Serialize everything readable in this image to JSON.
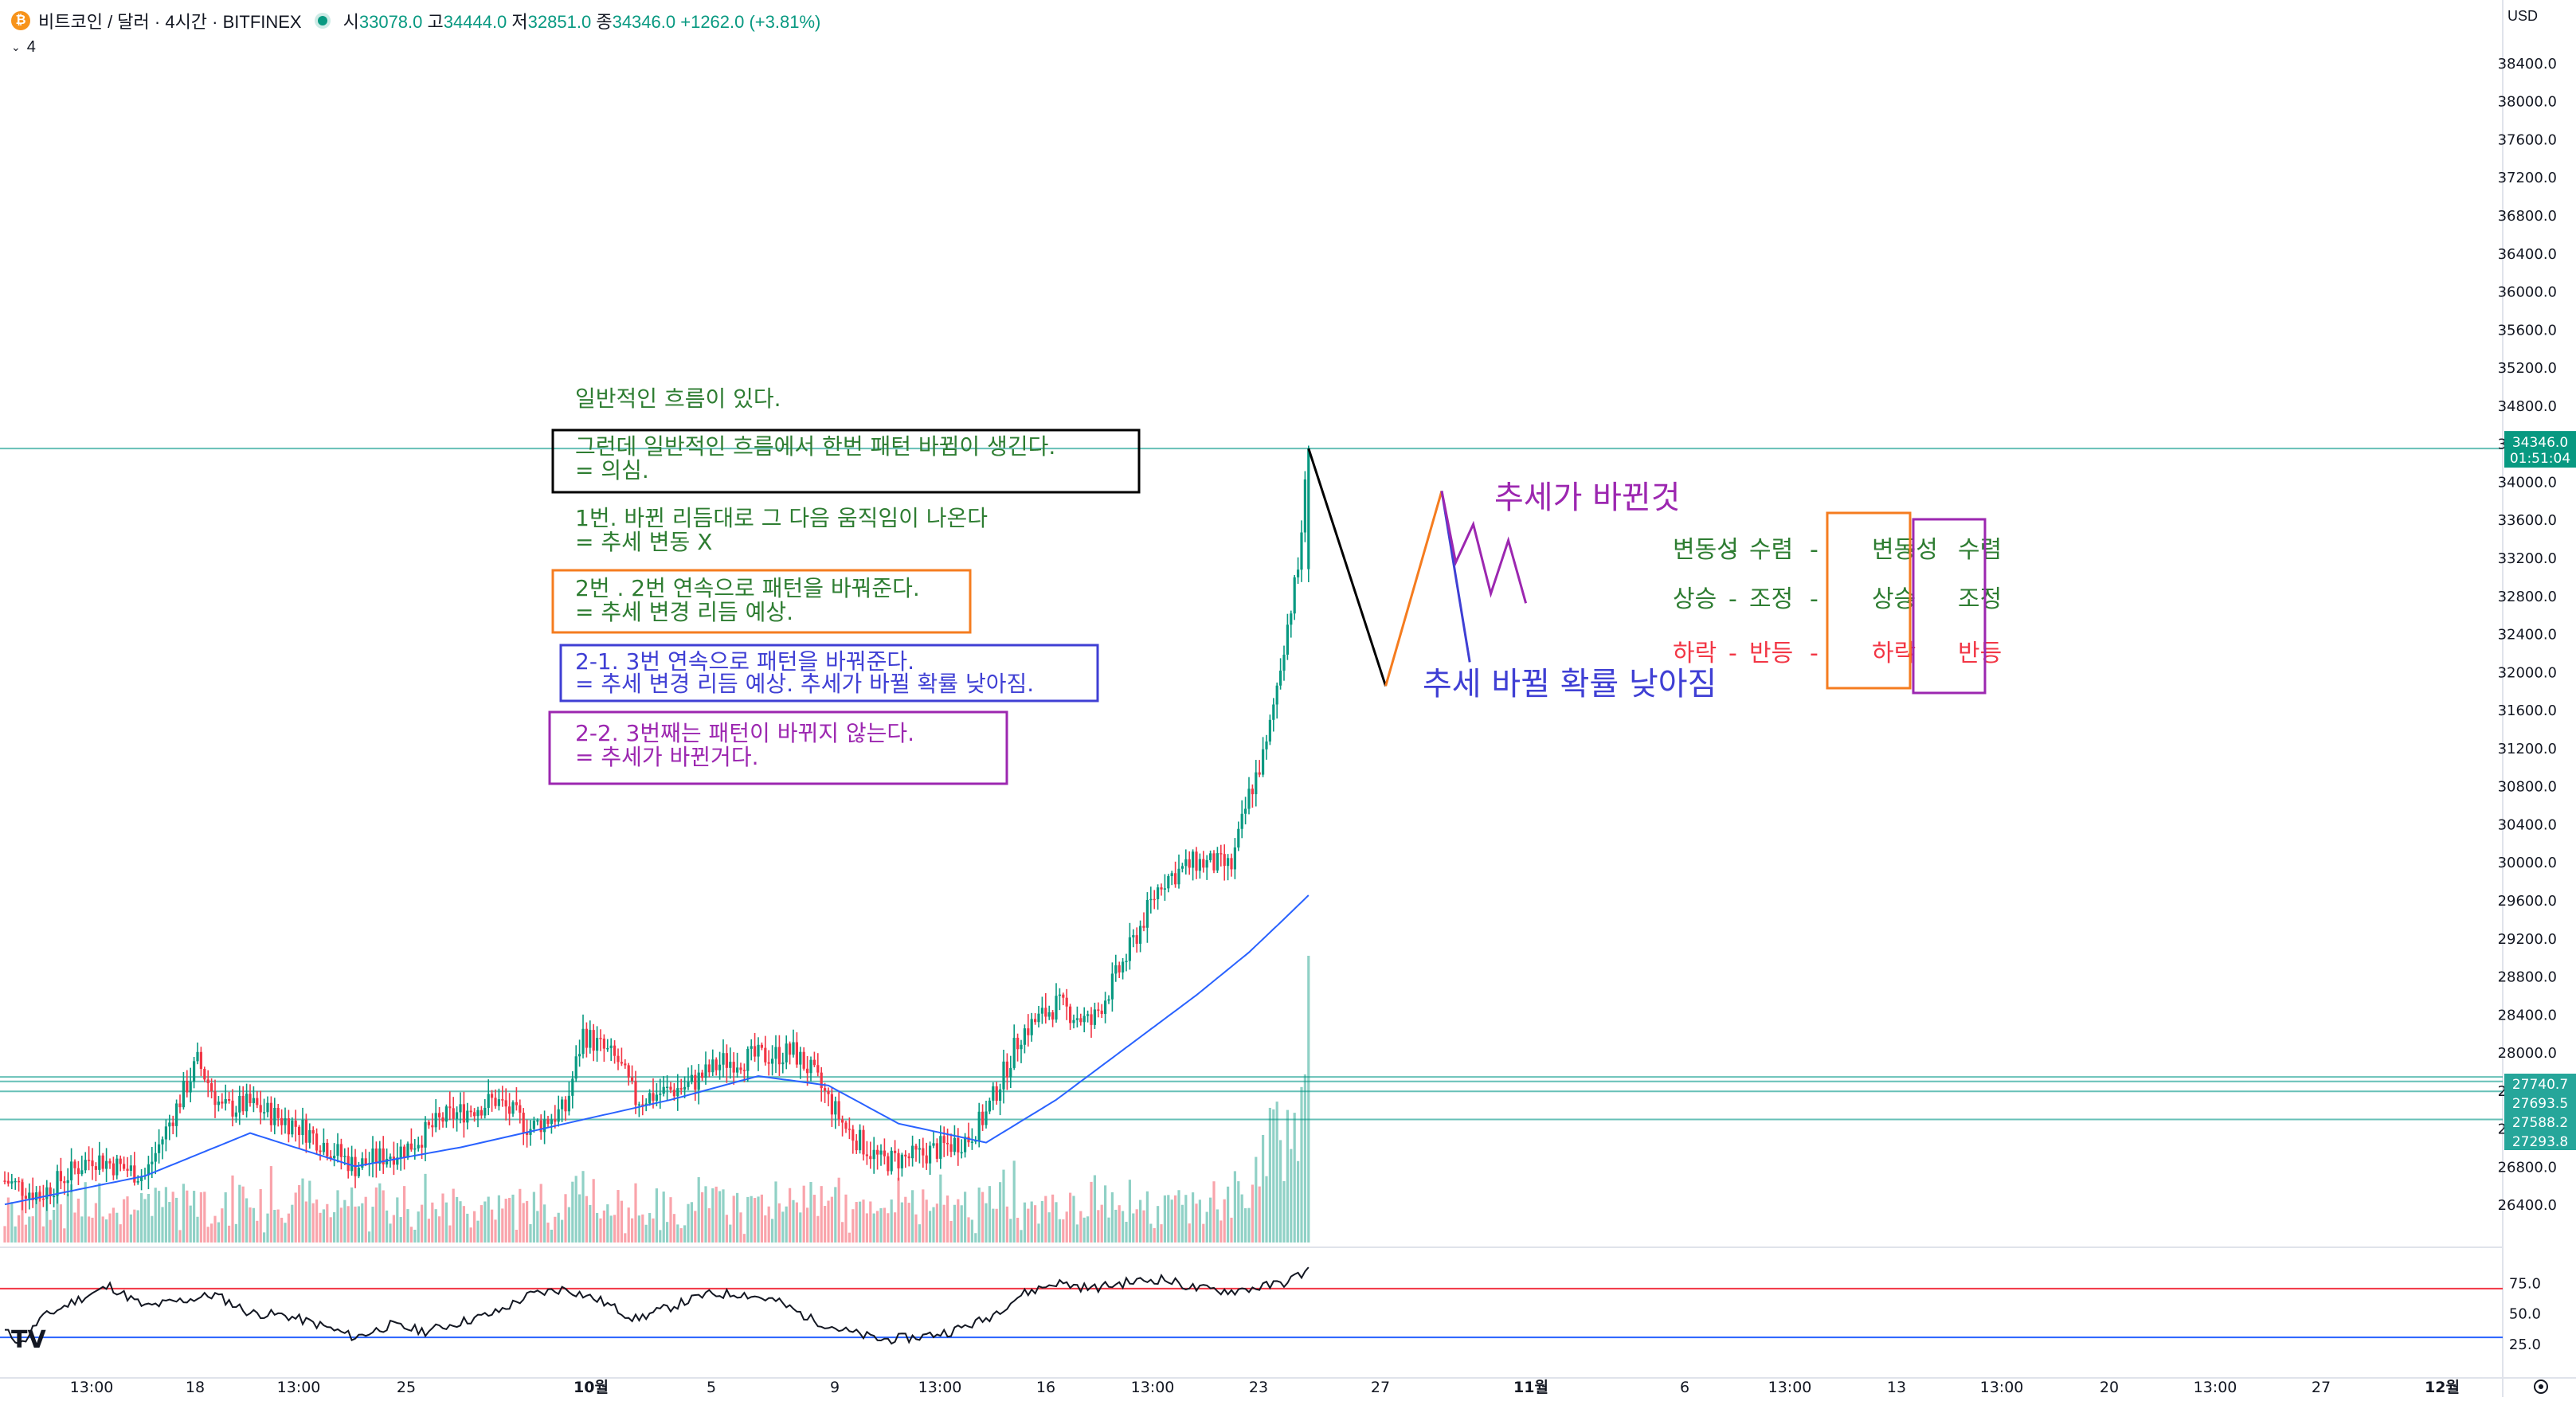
{
  "header": {
    "symbol": "비트코인 / 달러 · 4시간 · BITFINEX",
    "icon": "bitcoin-icon",
    "ohlc": {
      "open_label": "시",
      "open": "33078.0",
      "high_label": "고",
      "high": "34444.0",
      "low_label": "저",
      "low": "32851.0",
      "close_label": "종",
      "close": "34346.0",
      "change": "+1262.0 (+3.81%)"
    },
    "indicator_count": "4",
    "currency": "USD"
  },
  "colors": {
    "up": "#089981",
    "down": "#f23645",
    "ma": "#2962ff",
    "rsi_line": "#131722",
    "rsi_upper": "#f23645",
    "rsi_lower": "#2962ff",
    "hline": "#26a69a"
  },
  "price_tag": {
    "value": "34346.0",
    "countdown": "01:51:04"
  },
  "hline_tags": [
    "27740.7",
    "27693.5",
    "27588.2",
    "27293.8"
  ],
  "annotations": {
    "line1": "일반적인 흐름이 있다.",
    "box_black": [
      "그런데 일반적인 흐름에서 한번 패턴 바뀜이 생긴다.",
      "= 의심."
    ],
    "case1": [
      "1번. 바뀐 리듬대로 그 다음 움직임이 나온다",
      "= 추세 변동 X"
    ],
    "box_orange": [
      "2번 . 2번 연속으로 패턴을 바꿔준다.",
      "= 추세 변경 리듬 예상."
    ],
    "box_blue": [
      "2-1. 3번 연속으로 패턴을 바꿔준다.",
      "= 추세 변경 리듬 예상. 추세가 바뀔 확률 낮아짐."
    ],
    "box_purple": [
      "2-2. 3번째는 패턴이 바뀌지 않는다.",
      "= 추세가 바뀐거다."
    ],
    "trend_changed": "추세가 바뀐것",
    "trend_unlikely": "추세 바뀔 확률 낮아짐",
    "grid_row1": [
      "변동성",
      "-",
      "수렴",
      "-",
      "변동성",
      "-",
      "수렴"
    ],
    "grid_row2": [
      "상승",
      "-",
      "조정",
      "-",
      "상승",
      "-",
      "조정"
    ],
    "grid_row3": [
      "하락",
      "-",
      "반등",
      "-",
      "하락",
      "-",
      "반등"
    ]
  },
  "chart_data": {
    "type": "candlestick",
    "interval": "4h",
    "price_axis": {
      "min": 26000,
      "max": 38600,
      "ticks": [
        38400,
        38000,
        37600,
        37200,
        36800,
        36400,
        36000,
        35600,
        35200,
        34800,
        34400,
        34000,
        33600,
        33200,
        32800,
        32400,
        32000,
        31600,
        31200,
        30800,
        30400,
        30000,
        29600,
        29200,
        28800,
        28400,
        28000,
        27600,
        27200,
        26800,
        26400
      ]
    },
    "x_axis": {
      "tick_labels": [
        "13:00",
        "18",
        "13:00",
        "25",
        "10월",
        "5",
        "9",
        "13:00",
        "16",
        "13:00",
        "23",
        "27",
        "11월",
        "6",
        "13:00",
        "13",
        "13:00",
        "20",
        "13:00",
        "27",
        "12월"
      ]
    },
    "horizontal_lines": [
      34346.0,
      27740.7,
      27693.5,
      27588.2,
      27293.8
    ],
    "price_anchors": [
      [
        0,
        26650
      ],
      [
        10,
        26500
      ],
      [
        25,
        26900
      ],
      [
        40,
        26700
      ],
      [
        55,
        27900
      ],
      [
        62,
        27400
      ],
      [
        70,
        27450
      ],
      [
        85,
        27200
      ],
      [
        100,
        26800
      ],
      [
        115,
        27000
      ],
      [
        125,
        27300
      ],
      [
        140,
        27500
      ],
      [
        150,
        27200
      ],
      [
        160,
        27400
      ],
      [
        165,
        28200
      ],
      [
        175,
        27900
      ],
      [
        180,
        27500
      ],
      [
        195,
        27650
      ],
      [
        205,
        27900
      ],
      [
        215,
        27950
      ],
      [
        225,
        28000
      ],
      [
        230,
        27800
      ],
      [
        240,
        27200
      ],
      [
        250,
        26850
      ],
      [
        260,
        26900
      ],
      [
        275,
        27100
      ],
      [
        280,
        27350
      ],
      [
        290,
        28200
      ],
      [
        300,
        28500
      ],
      [
        310,
        28300
      ],
      [
        320,
        29000
      ],
      [
        330,
        29800
      ],
      [
        340,
        30000
      ],
      [
        350,
        29950
      ],
      [
        355,
        30700
      ],
      [
        360,
        31200
      ],
      [
        365,
        32300
      ],
      [
        369,
        33078
      ],
      [
        372,
        34346
      ]
    ],
    "ma_anchors": [
      [
        0,
        26400
      ],
      [
        40,
        26700
      ],
      [
        70,
        27150
      ],
      [
        100,
        26800
      ],
      [
        130,
        27000
      ],
      [
        160,
        27250
      ],
      [
        190,
        27500
      ],
      [
        215,
        27750
      ],
      [
        235,
        27650
      ],
      [
        255,
        27250
      ],
      [
        280,
        27050
      ],
      [
        300,
        27500
      ],
      [
        320,
        28050
      ],
      [
        340,
        28600
      ],
      [
        355,
        29050
      ],
      [
        365,
        29400
      ],
      [
        372,
        29650
      ]
    ],
    "rsi": {
      "range": [
        0,
        100
      ],
      "ticks": [
        75.0,
        50.0,
        25.0
      ],
      "upper": 70,
      "lower": 30,
      "anchors": [
        [
          0,
          35
        ],
        [
          5,
          25
        ],
        [
          10,
          45
        ],
        [
          20,
          60
        ],
        [
          30,
          72
        ],
        [
          40,
          55
        ],
        [
          50,
          60
        ],
        [
          60,
          65
        ],
        [
          70,
          50
        ],
        [
          80,
          48
        ],
        [
          90,
          40
        ],
        [
          100,
          30
        ],
        [
          110,
          40
        ],
        [
          120,
          35
        ],
        [
          140,
          50
        ],
        [
          150,
          65
        ],
        [
          160,
          70
        ],
        [
          170,
          60
        ],
        [
          180,
          45
        ],
        [
          190,
          55
        ],
        [
          200,
          65
        ],
        [
          210,
          66
        ],
        [
          220,
          60
        ],
        [
          230,
          45
        ],
        [
          240,
          35
        ],
        [
          250,
          28
        ],
        [
          260,
          30
        ],
        [
          270,
          35
        ],
        [
          280,
          45
        ],
        [
          290,
          65
        ],
        [
          300,
          75
        ],
        [
          310,
          70
        ],
        [
          320,
          75
        ],
        [
          330,
          78
        ],
        [
          340,
          70
        ],
        [
          350,
          68
        ],
        [
          360,
          72
        ],
        [
          365,
          75
        ],
        [
          370,
          82
        ],
        [
          372,
          85
        ]
      ]
    },
    "drawings": {
      "black_leg": [
        [
          372,
          34346
        ],
        [
          394,
          31850
        ]
      ],
      "orange_leg": [
        [
          394,
          31850
        ],
        [
          410,
          33900
        ]
      ],
      "blue_leg": [
        [
          410,
          33900
        ],
        [
          418,
          32100
        ]
      ],
      "purple_zigzag": [
        [
          410,
          33900
        ],
        [
          414,
          33150
        ],
        [
          419,
          33550
        ],
        [
          424,
          32820
        ],
        [
          429,
          33380
        ],
        [
          434,
          32720
        ]
      ]
    }
  }
}
